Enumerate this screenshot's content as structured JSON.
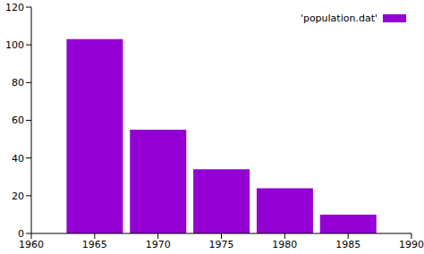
{
  "chart_data": {
    "type": "bar",
    "x": [
      1965,
      1970,
      1975,
      1980,
      1985
    ],
    "series": [
      {
        "name": "'population.dat'",
        "color": "#9400d3",
        "values": [
          103,
          55,
          34,
          24,
          10
        ]
      }
    ],
    "xlim": [
      1960,
      1990
    ],
    "xticks": [
      1960,
      1965,
      1970,
      1975,
      1980,
      1985,
      1990
    ],
    "ylim": [
      0,
      120
    ],
    "yticks": [
      0,
      20,
      40,
      60,
      80,
      100,
      120
    ],
    "legend": "upper right"
  }
}
